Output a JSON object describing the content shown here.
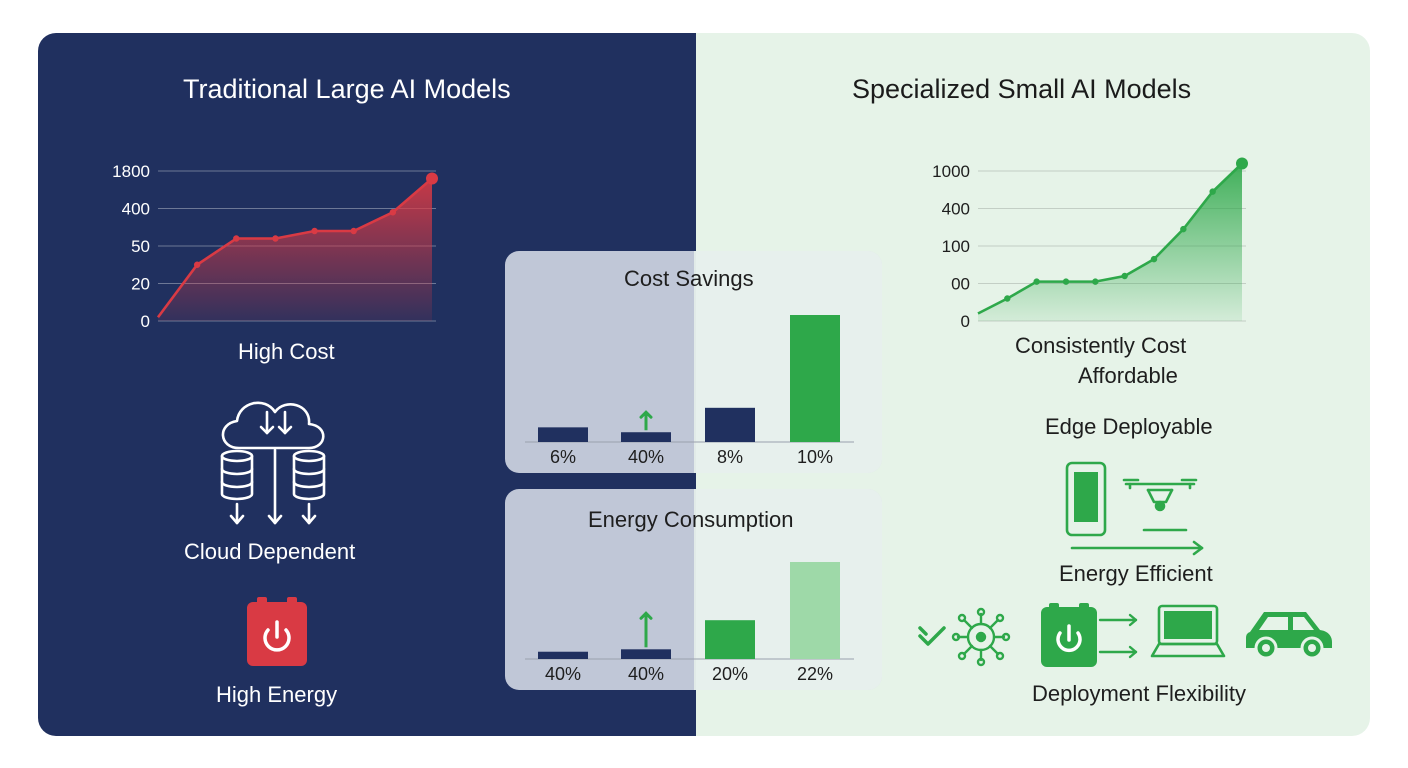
{
  "left_panel": {
    "title": "Traditional Large AI Models",
    "chart_label": "High Cost",
    "features": [
      "Cloud Dependent",
      "High Energy"
    ]
  },
  "right_panel": {
    "title": "Specialized Small AI Models",
    "chart_label_line1": "Consistently Cost",
    "chart_label_line2": "Affordable",
    "features": [
      "Edge Deployable",
      "Energy Efficient",
      "Deployment Flexibility"
    ]
  },
  "colors": {
    "navy": "#20305f",
    "light_green_bg": "#e6f3e8",
    "red": "#d93a44",
    "green": "#2ea84a",
    "pale_green": "#9ed9a8"
  },
  "chart_data": [
    {
      "type": "area",
      "title": "",
      "xlabel": "High Cost",
      "ylabel": "",
      "y_ticks": [
        "1800",
        "400",
        "50",
        "20",
        "0"
      ],
      "x": [
        0,
        1,
        2,
        3,
        4,
        5,
        6,
        7
      ],
      "values": [
        0.1,
        1.5,
        2.2,
        2.2,
        2.4,
        2.4,
        2.9,
        3.8
      ],
      "ylim": [
        0,
        4
      ],
      "grid": true,
      "color": "#d93a44"
    },
    {
      "type": "area",
      "title": "",
      "xlabel": "Consistently Cost Affordable",
      "ylabel": "",
      "y_ticks": [
        "1000",
        "400",
        "100",
        "00",
        "0"
      ],
      "x": [
        0,
        1,
        2,
        3,
        4,
        5,
        6,
        7,
        8,
        9
      ],
      "values": [
        0.2,
        0.6,
        1.05,
        1.05,
        1.05,
        1.2,
        1.65,
        2.45,
        3.45,
        4.2
      ],
      "ylim": [
        0,
        4
      ],
      "grid": true,
      "color": "#2ea84a"
    },
    {
      "type": "bar",
      "title": "Cost Savings",
      "categories": [
        "6%",
        "40%",
        "8%",
        "10%"
      ],
      "values": [
        6,
        4,
        14,
        52
      ],
      "ylim": [
        0,
        52
      ],
      "colors": [
        "#20305f",
        "#20305f",
        "#20305f",
        "#2ea84a"
      ]
    },
    {
      "type": "bar",
      "title": "Energy Consumption",
      "categories": [
        "40%",
        "40%",
        "20%",
        "22%"
      ],
      "values": [
        3,
        4,
        16,
        40
      ],
      "ylim": [
        0,
        40
      ],
      "colors": [
        "#20305f",
        "#20305f",
        "#2ea84a",
        "#9ed9a8"
      ]
    }
  ]
}
